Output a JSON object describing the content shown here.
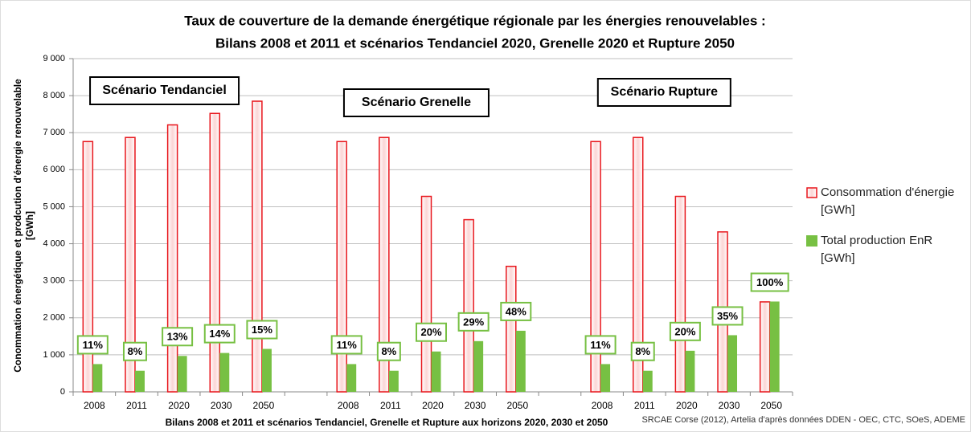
{
  "chart_data": {
    "type": "bar",
    "title": [
      "Taux de couverture de la demande énergétique régionale par les énergies renouvelables :",
      "Bilans 2008 et 2011 et scénarios Tendanciel 2020, Grenelle 2020 et Rupture 2050"
    ],
    "ylabel": [
      "Conommation énergétique et prodcution d'énergie renouvelable",
      "[GWh]"
    ],
    "xlabel": "Bilans 2008 et 2011 et scénarios Tendanciel, Grenelle et Rupture aux horizons 2020, 2030 et 2050",
    "source": "SRCAE Corse (2012), Artelia d'après données DDEN - OEC, CTC, SOeS, ADEME",
    "scenario_labels": [
      "Scénario Tendanciel",
      "Scénario Grenelle",
      "Scénario Rupture"
    ],
    "categories": [
      "2008",
      "2011",
      "2020",
      "2030",
      "2050",
      null,
      "2008",
      "2011",
      "2020",
      "2030",
      "2050",
      null,
      "2008",
      "2011",
      "2020",
      "2030",
      "2050"
    ],
    "series": [
      {
        "name": "Consommation d'énergie [GWh]",
        "color": "#e8151b",
        "values": [
          6760,
          6870,
          7210,
          7520,
          7850,
          null,
          6760,
          6870,
          5280,
          4650,
          3390,
          null,
          6760,
          6870,
          5280,
          4320,
          2430
        ]
      },
      {
        "name": "Total production EnR [GWh]",
        "color": "#77c043",
        "values": [
          750,
          570,
          970,
          1050,
          1160,
          null,
          750,
          570,
          1090,
          1370,
          1650,
          null,
          750,
          570,
          1110,
          1530,
          2440
        ]
      }
    ],
    "annotations": [
      "11%",
      "8%",
      "13%",
      "14%",
      "15%",
      null,
      "11%",
      "8%",
      "20%",
      "29%",
      "48%",
      null,
      "11%",
      "8%",
      "20%",
      "35%",
      "100%"
    ],
    "ylim": [
      0,
      9000
    ],
    "yticks": [
      0,
      {
        "value": 1000,
        "label": "1 000"
      },
      {
        "value": 2000,
        "label": "2 000"
      },
      {
        "value": 3000,
        "label": "3 000"
      },
      {
        "value": 4000,
        "label": "4 000"
      },
      {
        "value": 5000,
        "label": "5 000"
      },
      {
        "value": 6000,
        "label": "6 000"
      },
      {
        "value": 7000,
        "label": "7 000"
      },
      {
        "value": 8000,
        "label": "8 000"
      },
      {
        "value": 9000,
        "label": "9 000"
      }
    ],
    "grid": true,
    "legend": "right"
  }
}
